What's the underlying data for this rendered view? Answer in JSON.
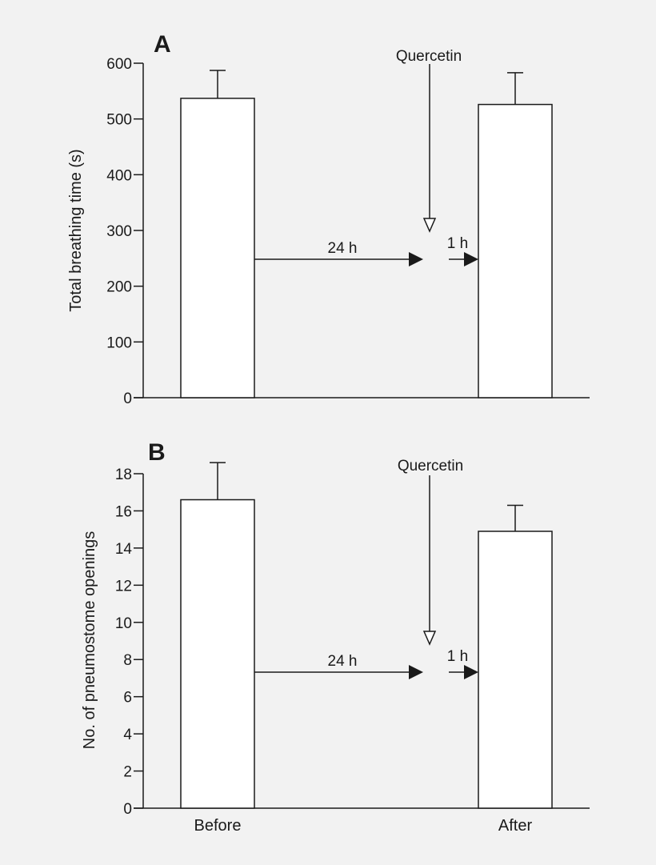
{
  "chart_data": [
    {
      "type": "bar",
      "panel_label": "A",
      "categories": [
        "Before",
        "After"
      ],
      "values": [
        537,
        526
      ],
      "errors": [
        50,
        57
      ],
      "title": "",
      "xlabel": "",
      "ylabel": "Total breathing time (s)",
      "ylim": [
        0,
        600
      ],
      "yticks": [
        0,
        100,
        200,
        300,
        400,
        500,
        600
      ],
      "show_category_labels": false,
      "grid": false,
      "annotations": {
        "treatment": "Quercetin",
        "interval_long": "24 h",
        "interval_short": "1 h"
      }
    },
    {
      "type": "bar",
      "panel_label": "B",
      "categories": [
        "Before",
        "After"
      ],
      "values": [
        16.6,
        14.9
      ],
      "errors": [
        2.0,
        1.4
      ],
      "title": "",
      "xlabel": "",
      "ylabel": "No. of pneumostome openings",
      "ylim": [
        0,
        18
      ],
      "yticks": [
        0,
        2,
        4,
        6,
        8,
        10,
        12,
        14,
        16,
        18
      ],
      "show_category_labels": true,
      "grid": false,
      "annotations": {
        "treatment": "Quercetin",
        "interval_long": "24 h",
        "interval_short": "1 h"
      }
    }
  ]
}
